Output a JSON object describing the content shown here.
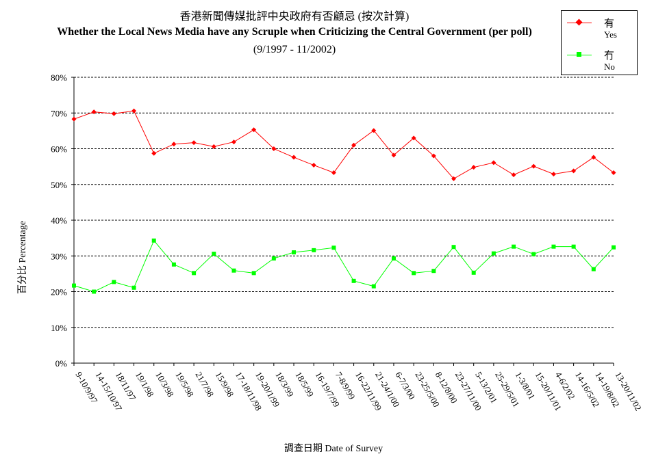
{
  "chart_data": {
    "type": "line",
    "title": "香港新聞傳媒批評中央政府有否顧忌 (按次計算)",
    "subtitle": "Whether the Local News Media have any Scruple when Criticizing the Central Government (per poll)",
    "period": "(9/1997 - 11/2002)",
    "xlabel": "調查日期 Date of Survey",
    "ylabel": "百分比 Percentage",
    "ylim": [
      0,
      80
    ],
    "yticks": [
      "0%",
      "10%",
      "20%",
      "30%",
      "40%",
      "50%",
      "60%",
      "70%",
      "80%"
    ],
    "categories": [
      "9-10/9/97",
      "14-15/10/97",
      "18/11/97",
      "19/1/98",
      "10/3/98",
      "19/5/98",
      "21/7/98",
      "15/9/98",
      "17-18/11/98",
      "19-20/1/99",
      "18/3/99",
      "18/5/99",
      "16-19/7/99",
      "7-8/9/99",
      "16-22/11/99",
      "21-24/1/00",
      "6-7/3/00",
      "23-25/5/00",
      "8-12/8/00",
      "23-27/11/00",
      "5-13/2/01",
      "25-29/5/01",
      "1-3/8/01",
      "15-20/11/01",
      "4-6/2/02",
      "14-16/5/02",
      "14-19/8/02",
      "13-20/11/02"
    ],
    "grid": true,
    "legend_position": "top-right",
    "series": [
      {
        "name": "有",
        "name_en": "Yes",
        "color": "#ff0000",
        "marker": "diamond",
        "values": [
          68.3,
          70.3,
          69.8,
          70.6,
          58.7,
          61.3,
          61.7,
          60.6,
          61.9,
          65.3,
          60.0,
          57.6,
          55.4,
          53.3,
          61.0,
          65.1,
          58.2,
          63.0,
          58.0,
          51.6,
          54.8,
          56.1,
          52.7,
          55.1,
          52.9,
          53.8,
          57.6,
          53.3
        ]
      },
      {
        "name": "冇",
        "name_en": "No",
        "color": "#00ff00",
        "marker": "square",
        "values": [
          21.7,
          20.0,
          22.7,
          21.1,
          34.3,
          27.6,
          25.2,
          30.6,
          25.9,
          25.2,
          29.3,
          31.0,
          31.6,
          32.3,
          23.0,
          21.5,
          29.3,
          25.2,
          25.8,
          32.5,
          25.3,
          30.7,
          32.6,
          30.5,
          32.6,
          32.6,
          26.3,
          32.4
        ]
      }
    ]
  }
}
